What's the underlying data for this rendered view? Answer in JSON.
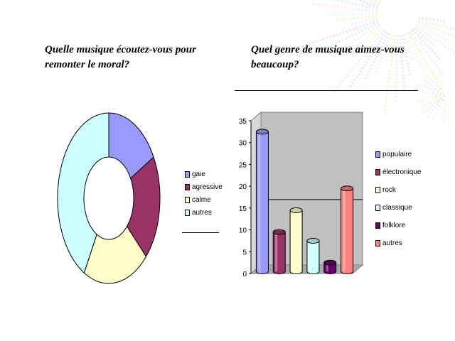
{
  "slide": {
    "left_question": "Quelle musique écoutez-vous pour remonter le moral?",
    "right_question": "Quel genre de musique aimez-vous beaucoup?"
  },
  "chart_data": [
    {
      "type": "pie",
      "variant": "donut",
      "title": "",
      "legend_position": "right",
      "categories": [
        "gaie",
        "agressive",
        "calme",
        "autres"
      ],
      "values": [
        17,
        20,
        21,
        42
      ],
      "colors": [
        "#9999ff",
        "#993366",
        "#ffffcc",
        "#ccffff"
      ]
    },
    {
      "type": "bar",
      "variant": "3d-cylinder",
      "title": "",
      "xlabel": "",
      "ylabel": "",
      "ylim": [
        0,
        35
      ],
      "yticks": [
        "0",
        "5",
        "10",
        "15",
        "20",
        "25",
        "30",
        "35"
      ],
      "grid": false,
      "legend_position": "right",
      "categories": [
        "populaire",
        "électronique",
        "rock",
        "classique",
        "folklore",
        "autres"
      ],
      "values": [
        32,
        9,
        14,
        7,
        2,
        19
      ],
      "colors": [
        "#9999ff",
        "#993366",
        "#ffffcc",
        "#ccffff",
        "#660066",
        "#ff8080"
      ]
    }
  ]
}
